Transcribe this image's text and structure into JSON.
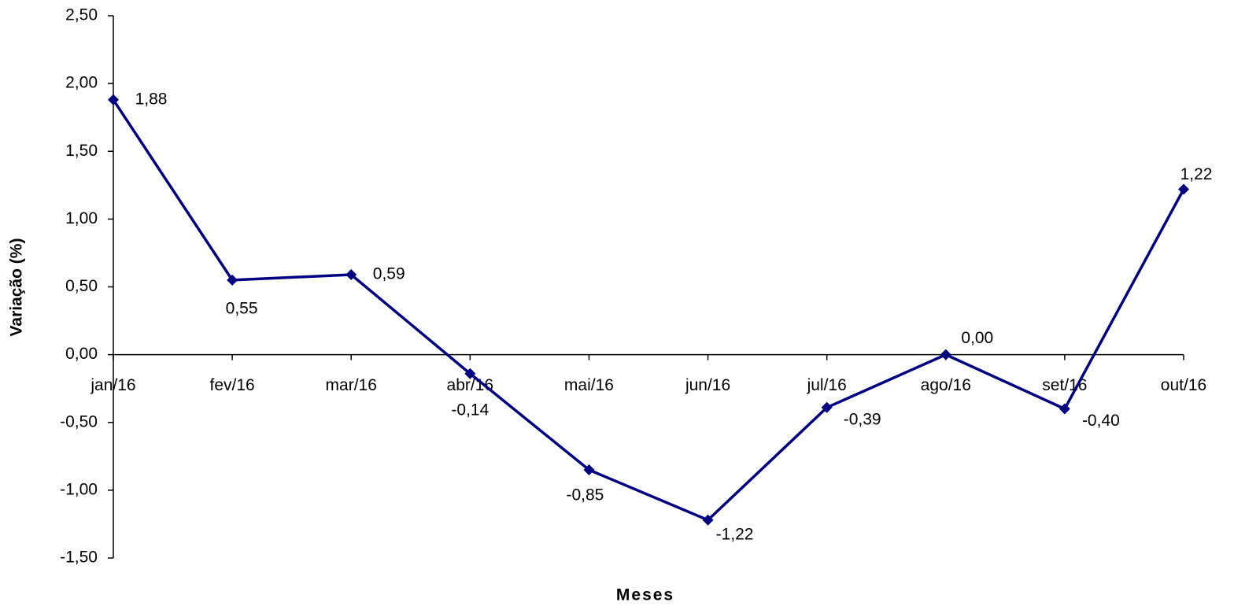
{
  "chart_data": {
    "type": "line",
    "x_label": "Meses",
    "y_label": "Variação (%)",
    "categories": [
      "jan/16",
      "fev/16",
      "mar/16",
      "abr/16",
      "mai/16",
      "jun/16",
      "jul/16",
      "ago/16",
      "set/16",
      "out/16"
    ],
    "values": [
      1.88,
      0.55,
      0.59,
      -0.14,
      -0.85,
      -1.22,
      -0.39,
      0.0,
      -0.4,
      1.22
    ],
    "value_labels": [
      "1,88",
      "0,55",
      "0,59",
      "-0,14",
      "-0,85",
      "-1,22",
      "-0,39",
      "0,00",
      "-0,40",
      "1,22"
    ],
    "color": "#000080",
    "ylim": [
      -1.5,
      2.5
    ],
    "yticks": [
      {
        "value": -1.5,
        "label": "-1,50"
      },
      {
        "value": -1,
        "label": "-1,00"
      },
      {
        "value": -0.5,
        "label": "-0,50"
      },
      {
        "value": 0,
        "label": "0,00"
      },
      {
        "value": 0.5,
        "label": "0,50"
      },
      {
        "value": 1,
        "label": "1,00"
      },
      {
        "value": 1.5,
        "label": "1,50"
      },
      {
        "value": 2,
        "label": "2,00"
      },
      {
        "value": 2.5,
        "label": "2,50"
      }
    ],
    "grid": false
  }
}
